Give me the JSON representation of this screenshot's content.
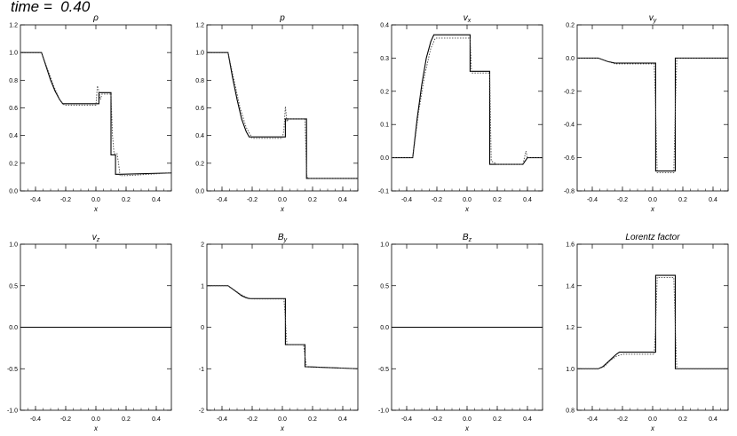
{
  "figure_title": "time =  0.40",
  "chart_data": [
    {
      "type": "line",
      "title": "ρ",
      "xlabel": "x",
      "xlim": [
        -0.5,
        0.5
      ],
      "ylim": [
        0.0,
        1.2
      ],
      "xticks": [
        "-0.4",
        "-0.2",
        "0.0",
        "0.2",
        "0.4"
      ],
      "yticks": [
        "0.0",
        "0.2",
        "0.4",
        "0.6",
        "0.8",
        "1.0",
        "1.2"
      ],
      "series": [
        {
          "style": "solid",
          "x": [
            -0.5,
            -0.36,
            -0.33,
            -0.3,
            -0.27,
            -0.24,
            -0.22,
            0.0,
            0.02,
            0.02,
            0.1,
            0.1,
            0.13,
            0.13,
            0.16,
            0.16,
            0.5
          ],
          "y": [
            1.0,
            1.0,
            0.9,
            0.8,
            0.72,
            0.66,
            0.63,
            0.63,
            0.63,
            0.71,
            0.71,
            0.26,
            0.26,
            0.12,
            0.12,
            0.12,
            0.13
          ]
        },
        {
          "style": "dotted",
          "x": [
            -0.5,
            -0.36,
            -0.32,
            -0.28,
            -0.24,
            -0.21,
            -0.1,
            0.0,
            0.01,
            0.02,
            0.03,
            0.04,
            0.1,
            0.11,
            0.12,
            0.14,
            0.15,
            0.16,
            0.2,
            0.5
          ],
          "y": [
            1.0,
            1.0,
            0.88,
            0.76,
            0.66,
            0.62,
            0.62,
            0.62,
            0.76,
            0.72,
            0.66,
            0.7,
            0.7,
            0.4,
            0.27,
            0.27,
            0.2,
            0.11,
            0.11,
            0.13
          ]
        }
      ]
    },
    {
      "type": "line",
      "title": "p",
      "xlabel": "x",
      "xlim": [
        -0.5,
        0.5
      ],
      "ylim": [
        0.0,
        1.2
      ],
      "xticks": [
        "-0.4",
        "-0.2",
        "0.0",
        "0.2",
        "0.4"
      ],
      "yticks": [
        "0.0",
        "0.2",
        "0.4",
        "0.6",
        "0.8",
        "1.0",
        "1.2"
      ],
      "series": [
        {
          "style": "solid",
          "x": [
            -0.5,
            -0.36,
            -0.33,
            -0.3,
            -0.27,
            -0.24,
            -0.22,
            0.02,
            0.02,
            0.16,
            0.16,
            0.5
          ],
          "y": [
            1.0,
            1.0,
            0.82,
            0.66,
            0.52,
            0.43,
            0.39,
            0.39,
            0.52,
            0.52,
            0.09,
            0.09
          ]
        },
        {
          "style": "dotted",
          "x": [
            -0.5,
            -0.36,
            -0.32,
            -0.28,
            -0.24,
            -0.2,
            0.0,
            0.01,
            0.02,
            0.03,
            0.04,
            0.15,
            0.16,
            0.17,
            0.5
          ],
          "y": [
            1.0,
            1.0,
            0.8,
            0.6,
            0.46,
            0.38,
            0.38,
            0.44,
            0.61,
            0.5,
            0.52,
            0.52,
            0.12,
            0.09,
            0.09
          ]
        }
      ]
    },
    {
      "type": "line",
      "title": "vx",
      "title_main": "v",
      "title_sub": "x",
      "xlabel": "x",
      "xlim": [
        -0.5,
        0.5
      ],
      "ylim": [
        -0.1,
        0.4
      ],
      "xticks": [
        "-0.4",
        "-0.2",
        "0.0",
        "0.2",
        "0.4"
      ],
      "yticks": [
        "-0.1",
        "0.0",
        "0.1",
        "0.2",
        "0.3",
        "0.4"
      ],
      "series": [
        {
          "style": "solid",
          "x": [
            -0.5,
            -0.36,
            -0.33,
            -0.3,
            -0.27,
            -0.24,
            -0.22,
            0.02,
            0.02,
            0.15,
            0.15,
            0.37,
            0.4,
            0.5
          ],
          "y": [
            0.0,
            0.0,
            0.12,
            0.22,
            0.3,
            0.35,
            0.37,
            0.37,
            0.26,
            0.26,
            -0.02,
            -0.02,
            0.0,
            0.0
          ]
        },
        {
          "style": "dotted",
          "x": [
            -0.5,
            -0.36,
            -0.32,
            -0.28,
            -0.24,
            -0.21,
            -0.1,
            0.02,
            0.03,
            0.15,
            0.16,
            0.2,
            0.37,
            0.39,
            0.4,
            0.5
          ],
          "y": [
            0.0,
            0.0,
            0.14,
            0.25,
            0.33,
            0.36,
            0.36,
            0.36,
            0.255,
            0.255,
            -0.01,
            -0.02,
            -0.02,
            0.02,
            0.0,
            0.0
          ]
        }
      ]
    },
    {
      "type": "line",
      "title": "vy",
      "title_main": "v",
      "title_sub": "y",
      "xlabel": "x",
      "xlim": [
        -0.5,
        0.5
      ],
      "ylim": [
        -0.8,
        0.2
      ],
      "xticks": [
        "-0.4",
        "-0.2",
        "0.0",
        "0.2",
        "0.4"
      ],
      "yticks": [
        "-0.8",
        "-0.6",
        "-0.4",
        "-0.2",
        "0.0",
        "0.2"
      ],
      "series": [
        {
          "style": "solid",
          "x": [
            -0.5,
            -0.36,
            -0.3,
            -0.25,
            0.02,
            0.02,
            0.15,
            0.15,
            0.5
          ],
          "y": [
            0.0,
            0.0,
            -0.02,
            -0.03,
            -0.03,
            -0.68,
            -0.68,
            0.0,
            0.0
          ]
        },
        {
          "style": "dotted",
          "x": [
            -0.5,
            -0.36,
            -0.3,
            -0.25,
            0.01,
            0.02,
            0.03,
            0.14,
            0.15,
            0.16,
            0.5
          ],
          "y": [
            0.0,
            0.0,
            -0.02,
            -0.035,
            -0.035,
            -0.3,
            -0.69,
            -0.69,
            -0.3,
            0.0,
            0.0
          ]
        }
      ]
    },
    {
      "type": "line",
      "title": "vz",
      "title_main": "v",
      "title_sub": "z",
      "xlabel": "x",
      "xlim": [
        -0.5,
        0.5
      ],
      "ylim": [
        -1.0,
        1.0
      ],
      "xticks": [
        "-0.4",
        "-0.2",
        "0.0",
        "0.2",
        "0.4"
      ],
      "yticks": [
        "-1.0",
        "-0.5",
        "0.0",
        "0.5",
        "1.0"
      ],
      "series": [
        {
          "style": "solid",
          "x": [
            -0.5,
            0.5
          ],
          "y": [
            0.0,
            0.0
          ]
        }
      ]
    },
    {
      "type": "line",
      "title": "By",
      "title_main": "B",
      "title_sub": "y",
      "xlabel": "x",
      "xlim": [
        -0.5,
        0.5
      ],
      "ylim": [
        -2.0,
        2.0
      ],
      "xticks": [
        "-0.4",
        "-0.2",
        "0.0",
        "0.2",
        "0.4"
      ],
      "yticks": [
        "-2",
        "-1",
        "0",
        "1",
        "2"
      ],
      "series": [
        {
          "style": "solid",
          "x": [
            -0.5,
            -0.36,
            -0.33,
            -0.3,
            -0.27,
            -0.24,
            -0.22,
            0.02,
            0.02,
            0.15,
            0.15,
            0.5
          ],
          "y": [
            1.0,
            1.0,
            0.92,
            0.84,
            0.76,
            0.71,
            0.69,
            0.69,
            -0.42,
            -0.42,
            -0.95,
            -1.0
          ]
        },
        {
          "style": "dotted",
          "x": [
            -0.5,
            -0.36,
            -0.32,
            -0.28,
            -0.24,
            -0.2,
            0.01,
            0.02,
            0.03,
            0.14,
            0.15,
            0.16,
            0.5
          ],
          "y": [
            1.0,
            1.0,
            0.9,
            0.8,
            0.72,
            0.68,
            0.68,
            0.2,
            -0.42,
            -0.42,
            -0.7,
            -0.95,
            -1.0
          ]
        }
      ]
    },
    {
      "type": "line",
      "title": "Bz",
      "title_main": "B",
      "title_sub": "z",
      "xlabel": "x",
      "xlim": [
        -0.5,
        0.5
      ],
      "ylim": [
        -1.0,
        1.0
      ],
      "xticks": [
        "-0.4",
        "-0.2",
        "0.0",
        "0.2",
        "0.4"
      ],
      "yticks": [
        "-1.0",
        "-0.5",
        "0.0",
        "0.5",
        "1.0"
      ],
      "series": [
        {
          "style": "solid",
          "x": [
            -0.5,
            0.5
          ],
          "y": [
            0.0,
            0.0
          ]
        }
      ]
    },
    {
      "type": "line",
      "title": "Lorentz factor",
      "xlabel": "x",
      "xlim": [
        -0.5,
        0.5
      ],
      "ylim": [
        0.8,
        1.6
      ],
      "xticks": [
        "-0.4",
        "-0.2",
        "0.0",
        "0.2",
        "0.4"
      ],
      "yticks": [
        "0.8",
        "1.0",
        "1.2",
        "1.4",
        "1.6"
      ],
      "series": [
        {
          "style": "solid",
          "x": [
            -0.5,
            -0.36,
            -0.33,
            -0.3,
            -0.27,
            -0.24,
            -0.22,
            0.02,
            0.02,
            0.15,
            0.15,
            0.5
          ],
          "y": [
            1.0,
            1.0,
            1.01,
            1.03,
            1.05,
            1.07,
            1.08,
            1.08,
            1.45,
            1.45,
            1.0,
            1.0
          ]
        },
        {
          "style": "dotted",
          "x": [
            -0.5,
            -0.36,
            -0.32,
            -0.28,
            -0.24,
            -0.2,
            0.01,
            0.02,
            0.03,
            0.14,
            0.15,
            0.16,
            0.5
          ],
          "y": [
            1.0,
            1.0,
            1.01,
            1.04,
            1.06,
            1.07,
            1.07,
            1.2,
            1.44,
            1.44,
            1.2,
            1.0,
            1.0
          ]
        }
      ]
    }
  ]
}
